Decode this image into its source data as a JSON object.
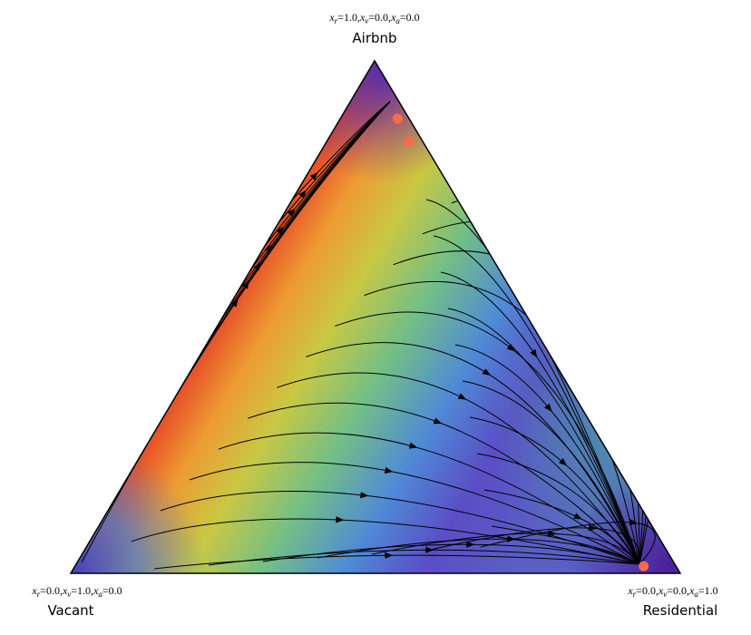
{
  "chart_data": {
    "type": "ternary",
    "corners": [
      {
        "name": "Airbnb",
        "coords": [
          {
            "var": "x",
            "sub": "r",
            "eq": "=1.0,"
          },
          {
            "var": "x",
            "sub": "v",
            "eq": "=0.0,"
          },
          {
            "var": "x",
            "sub": "a",
            "eq": "=0.0"
          }
        ]
      },
      {
        "name": "Vacant",
        "coords": [
          {
            "var": "x",
            "sub": "r",
            "eq": "=0.0,"
          },
          {
            "var": "x",
            "sub": "v",
            "eq": "=1.0,"
          },
          {
            "var": "x",
            "sub": "a",
            "eq": "=0.0"
          }
        ]
      },
      {
        "name": "Residential",
        "coords": [
          {
            "var": "x",
            "sub": "r",
            "eq": "=0.0,"
          },
          {
            "var": "x",
            "sub": "v",
            "eq": "=0.0,"
          },
          {
            "var": "x",
            "sub": "a",
            "eq": "=1.0"
          }
        ]
      }
    ],
    "points": {
      "color": "#ff6b4a",
      "top": [
        0.887,
        0.842,
        0.014
      ],
      "left": [
        0.019,
        0.023,
        0.053
      ],
      "right": [
        0.094,
        0.135,
        0.933
      ]
    }
  }
}
